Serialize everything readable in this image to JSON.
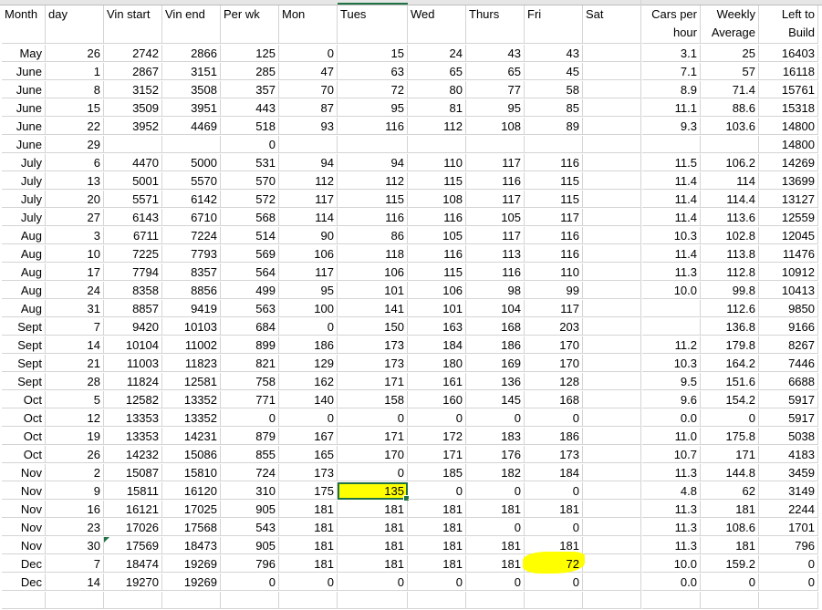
{
  "headers": [
    "Month",
    "day",
    "Vin start",
    "Vin end",
    "Per wk",
    "Mon",
    "Tues",
    "Wed",
    "Thurs",
    "Fri",
    "Sat",
    "Cars per hour",
    "Weekly Average",
    "Left to Build"
  ],
  "rows": [
    [
      "May",
      "26",
      "2742",
      "2866",
      "125",
      "0",
      "15",
      "24",
      "43",
      "43",
      "",
      "3.1",
      "25",
      "16403"
    ],
    [
      "June",
      "1",
      "2867",
      "3151",
      "285",
      "47",
      "63",
      "65",
      "65",
      "45",
      "",
      "7.1",
      "57",
      "16118"
    ],
    [
      "June",
      "8",
      "3152",
      "3508",
      "357",
      "70",
      "72",
      "80",
      "77",
      "58",
      "",
      "8.9",
      "71.4",
      "15761"
    ],
    [
      "June",
      "15",
      "3509",
      "3951",
      "443",
      "87",
      "95",
      "81",
      "95",
      "85",
      "",
      "11.1",
      "88.6",
      "15318"
    ],
    [
      "June",
      "22",
      "3952",
      "4469",
      "518",
      "93",
      "116",
      "112",
      "108",
      "89",
      "",
      "9.3",
      "103.6",
      "14800"
    ],
    [
      "June",
      "29",
      "",
      "",
      "0",
      "",
      "",
      "",
      "",
      "",
      "",
      "",
      "",
      "14800"
    ],
    [
      "July",
      "6",
      "4470",
      "5000",
      "531",
      "94",
      "94",
      "110",
      "117",
      "116",
      "",
      "11.5",
      "106.2",
      "14269"
    ],
    [
      "July",
      "13",
      "5001",
      "5570",
      "570",
      "112",
      "112",
      "115",
      "116",
      "115",
      "",
      "11.4",
      "114",
      "13699"
    ],
    [
      "July",
      "20",
      "5571",
      "6142",
      "572",
      "117",
      "115",
      "108",
      "117",
      "115",
      "",
      "11.4",
      "114.4",
      "13127"
    ],
    [
      "July",
      "27",
      "6143",
      "6710",
      "568",
      "114",
      "116",
      "116",
      "105",
      "117",
      "",
      "11.4",
      "113.6",
      "12559"
    ],
    [
      "Aug",
      "3",
      "6711",
      "7224",
      "514",
      "90",
      "86",
      "105",
      "117",
      "116",
      "",
      "10.3",
      "102.8",
      "12045"
    ],
    [
      "Aug",
      "10",
      "7225",
      "7793",
      "569",
      "106",
      "118",
      "116",
      "113",
      "116",
      "",
      "11.4",
      "113.8",
      "11476"
    ],
    [
      "Aug",
      "17",
      "7794",
      "8357",
      "564",
      "117",
      "106",
      "115",
      "116",
      "110",
      "",
      "11.3",
      "112.8",
      "10912"
    ],
    [
      "Aug",
      "24",
      "8358",
      "8856",
      "499",
      "95",
      "101",
      "106",
      "98",
      "99",
      "",
      "10.0",
      "99.8",
      "10413"
    ],
    [
      "Aug",
      "31",
      "8857",
      "9419",
      "563",
      "100",
      "141",
      "101",
      "104",
      "117",
      "",
      "",
      "112.6",
      "9850"
    ],
    [
      "Sept",
      "7",
      "9420",
      "10103",
      "684",
      "0",
      "150",
      "163",
      "168",
      "203",
      "",
      "",
      "136.8",
      "9166"
    ],
    [
      "Sept",
      "14",
      "10104",
      "11002",
      "899",
      "186",
      "173",
      "184",
      "186",
      "170",
      "",
      "11.2",
      "179.8",
      "8267"
    ],
    [
      "Sept",
      "21",
      "11003",
      "11823",
      "821",
      "129",
      "173",
      "180",
      "169",
      "170",
      "",
      "10.3",
      "164.2",
      "7446"
    ],
    [
      "Sept",
      "28",
      "11824",
      "12581",
      "758",
      "162",
      "171",
      "161",
      "136",
      "128",
      "",
      "9.5",
      "151.6",
      "6688"
    ],
    [
      "Oct",
      "5",
      "12582",
      "13352",
      "771",
      "140",
      "158",
      "160",
      "145",
      "168",
      "",
      "9.6",
      "154.2",
      "5917"
    ],
    [
      "Oct",
      "12",
      "13353",
      "13352",
      "0",
      "0",
      "0",
      "0",
      "0",
      "0",
      "",
      "0.0",
      "0",
      "5917"
    ],
    [
      "Oct",
      "19",
      "13353",
      "14231",
      "879",
      "167",
      "171",
      "172",
      "183",
      "186",
      "",
      "11.0",
      "175.8",
      "5038"
    ],
    [
      "Oct",
      "26",
      "14232",
      "15086",
      "855",
      "165",
      "170",
      "171",
      "176",
      "173",
      "",
      "10.7",
      "171",
      "4183"
    ],
    [
      "Nov",
      "2",
      "15087",
      "15810",
      "724",
      "173",
      "0",
      "185",
      "182",
      "184",
      "",
      "11.3",
      "144.8",
      "3459"
    ],
    [
      "Nov",
      "9",
      "15811",
      "16120",
      "310",
      "175",
      "135",
      "0",
      "0",
      "0",
      "",
      "4.8",
      "62",
      "3149"
    ],
    [
      "Nov",
      "16",
      "16121",
      "17025",
      "905",
      "181",
      "181",
      "181",
      "181",
      "181",
      "",
      "11.3",
      "181",
      "2244"
    ],
    [
      "Nov",
      "23",
      "17026",
      "17568",
      "543",
      "181",
      "181",
      "181",
      "0",
      "0",
      "",
      "11.3",
      "108.6",
      "1701"
    ],
    [
      "Nov",
      "30",
      "17569",
      "18473",
      "905",
      "181",
      "181",
      "181",
      "181",
      "181",
      "",
      "11.3",
      "181",
      "796"
    ],
    [
      "Dec",
      "7",
      "18474",
      "19269",
      "796",
      "181",
      "181",
      "181",
      "181",
      "72",
      "",
      "10.0",
      "159.2",
      "0"
    ],
    [
      "Dec",
      "14",
      "19270",
      "19269",
      "0",
      "0",
      "0",
      "0",
      "0",
      "0",
      "",
      "0.0",
      "0",
      "0"
    ]
  ],
  "highlight_color": "#ffff00",
  "selection_color": "#217346",
  "selected_cell": {
    "row": "Nov 9",
    "column": "Tues"
  }
}
